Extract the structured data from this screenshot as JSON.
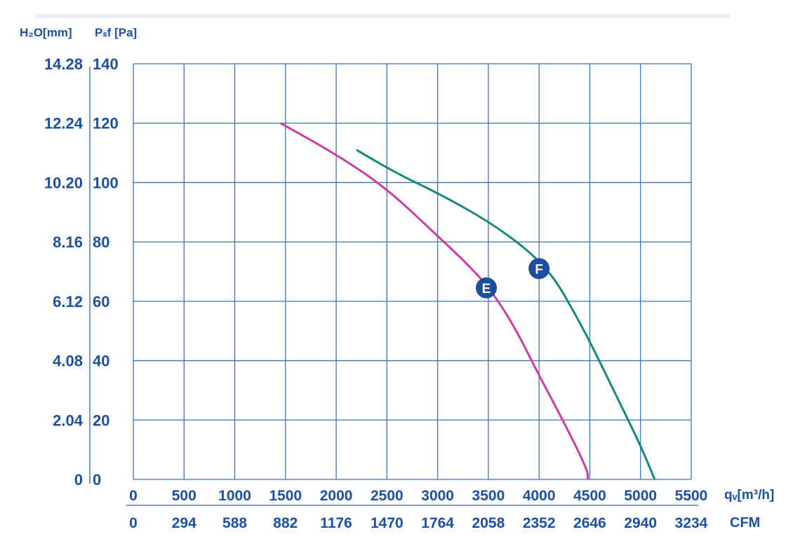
{
  "chart_data": {
    "type": "line",
    "title": "",
    "y_left_label": "H₂O[mm]",
    "y_right_label": "Pₛf [Pa]",
    "x_label": "qᵥ[m³/h]",
    "x2_label": "CFM",
    "xlim": [
      0,
      5500
    ],
    "ylim": [
      0,
      140
    ],
    "grid": true,
    "x_ticks": [
      "0",
      "500",
      "1000",
      "1500",
      "2000",
      "2500",
      "3000",
      "3500",
      "4000",
      "4500",
      "5000",
      "5500"
    ],
    "x2_ticks": [
      "0",
      "294",
      "588",
      "882",
      "1176",
      "1470",
      "1764",
      "2058",
      "2352",
      "2646",
      "2940",
      "3234"
    ],
    "y_ticks": [
      "0",
      "20",
      "40",
      "60",
      "80",
      "100",
      "120",
      "140"
    ],
    "y_mm_ticks": [
      "0",
      "2.04",
      "4.08",
      "6.12",
      "8.16",
      "10.20",
      "12.24",
      "14.28"
    ],
    "series": [
      {
        "name": "E",
        "color": "#c8409c",
        "label_at": [
          3480,
          64.5
        ],
        "points": [
          [
            1450,
            120
          ],
          [
            2000,
            109.5
          ],
          [
            2500,
            98
          ],
          [
            3000,
            82
          ],
          [
            3250,
            74
          ],
          [
            3500,
            65
          ],
          [
            3750,
            52
          ],
          [
            4000,
            35
          ],
          [
            4250,
            19
          ],
          [
            4480,
            3
          ],
          [
            4480,
            0
          ]
        ]
      },
      {
        "name": "F",
        "color": "#13897a",
        "label_at": [
          4000,
          71
        ],
        "points": [
          [
            2200,
            111
          ],
          [
            2600,
            103
          ],
          [
            3000,
            96.5
          ],
          [
            3500,
            87
          ],
          [
            3900,
            77
          ],
          [
            4150,
            68
          ],
          [
            4350,
            56
          ],
          [
            4500,
            46.5
          ],
          [
            4750,
            29
          ],
          [
            5000,
            11.5
          ],
          [
            5140,
            0
          ]
        ]
      }
    ]
  }
}
